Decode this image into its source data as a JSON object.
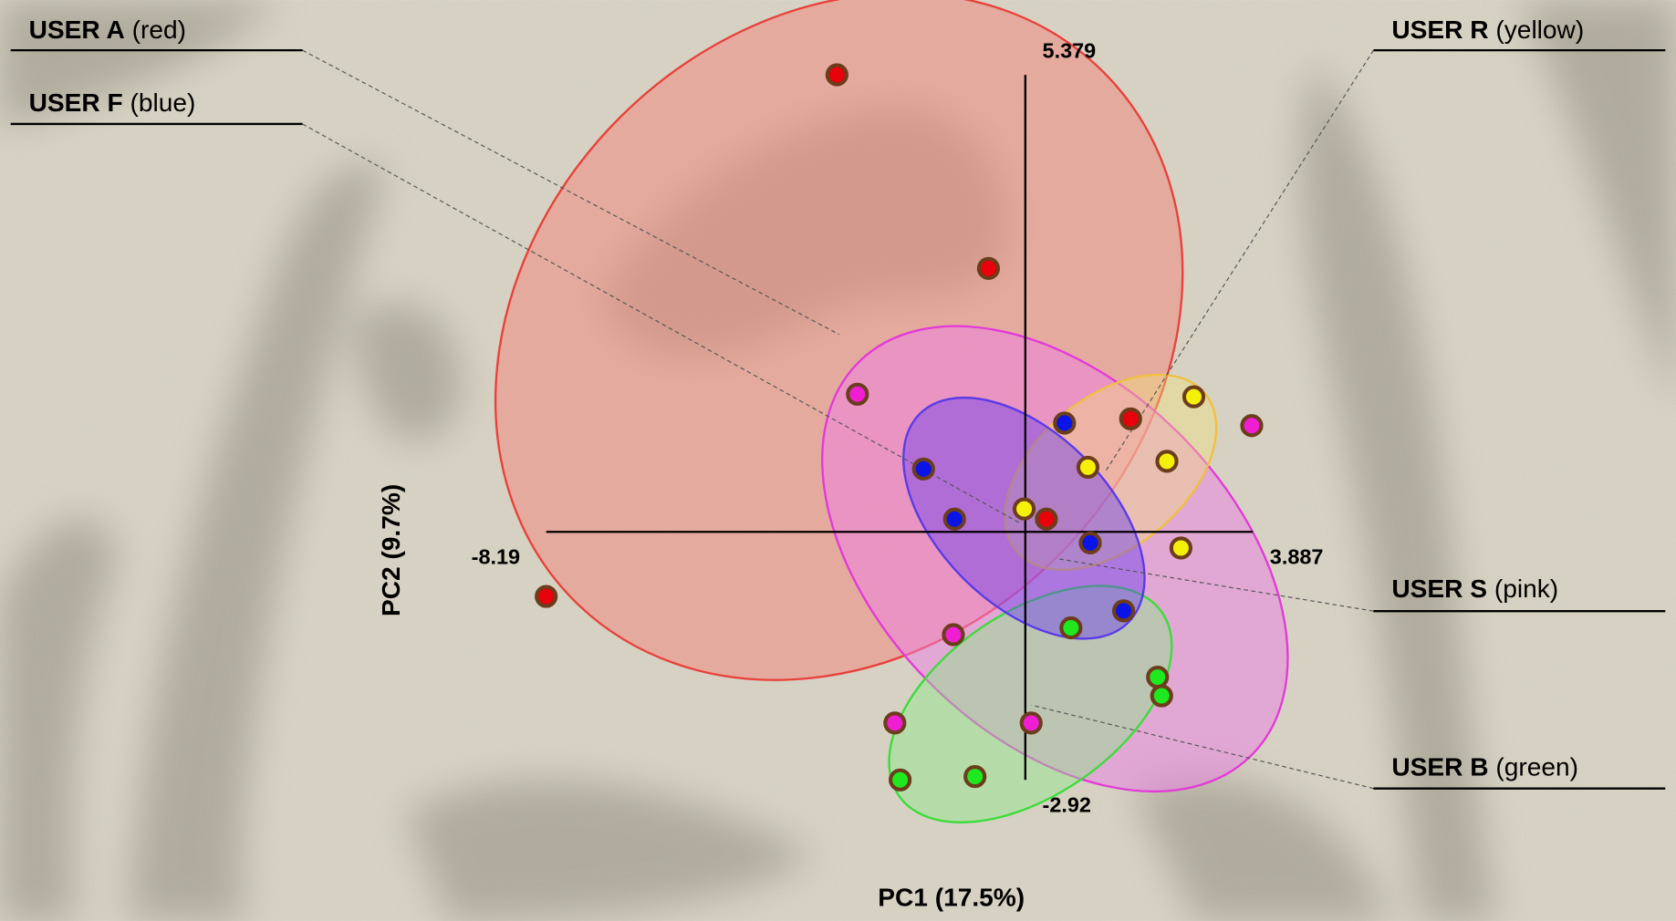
{
  "chart_data": {
    "type": "scatter",
    "x_label": "PC1 (17.5%)",
    "y_label": "PC2 (9.7%)",
    "xlim": [
      -8.19,
      3.887
    ],
    "ylim": [
      -2.92,
      5.379
    ],
    "xticks": [
      -8.19,
      3.887
    ],
    "yticks": [
      -2.92,
      5.379
    ],
    "series": [
      {
        "name": "USER A",
        "color_name": "(red)",
        "color": "#e8000b",
        "x": [
          -3.22,
          -0.63,
          1.8,
          0.36,
          -8.19
        ],
        "y": [
          5.38,
          3.1,
          1.33,
          0.15,
          -0.76
        ]
      },
      {
        "name": "USER F",
        "color_name": "(blue)",
        "color": "#0a14e6",
        "x": [
          0.67,
          -1.74,
          -1.21,
          1.11,
          1.68
        ],
        "y": [
          1.28,
          0.74,
          0.15,
          -0.13,
          -0.93
        ]
      },
      {
        "name": "USER R",
        "color_name": "(yellow)",
        "color": "#f5f00a",
        "x": [
          2.88,
          1.07,
          2.42,
          -0.02,
          2.66
        ],
        "y": [
          1.59,
          0.76,
          0.83,
          0.27,
          -0.19
        ]
      },
      {
        "name": "USER S",
        "color_name": "(pink)",
        "color": "#f01ed2",
        "x": [
          -2.87,
          3.87,
          -1.23,
          -2.23,
          0.1
        ],
        "y": [
          1.62,
          1.25,
          -1.21,
          -2.25,
          -2.25
        ]
      },
      {
        "name": "USER B",
        "color_name": "(green)",
        "color": "#1ee81e",
        "x": [
          0.78,
          2.26,
          2.33,
          -2.14,
          -0.86
        ],
        "y": [
          -1.13,
          -1.71,
          -1.93,
          -2.92,
          -2.88
        ]
      }
    ]
  }
}
